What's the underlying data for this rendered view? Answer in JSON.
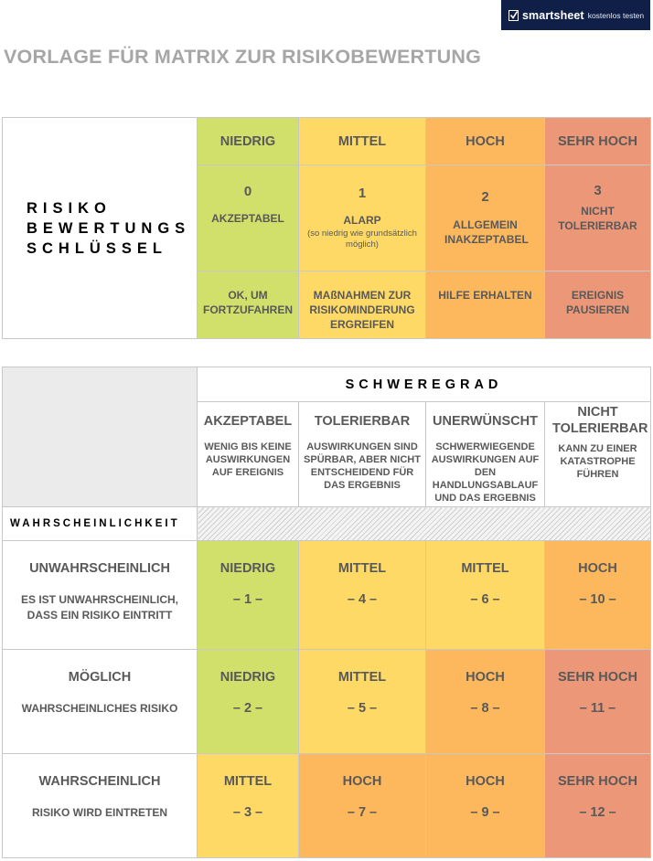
{
  "banner": {
    "brand": "smartsheet",
    "cta": "kostenlos testen",
    "background": "#0f1f48"
  },
  "title": "VORLAGE FÜR MATRIX ZUR RISIKOBEWERTUNG",
  "colors": {
    "green": "#d1df6b",
    "yellow": "#ffd966",
    "orange": "#fdb85d",
    "red": "#ec9878"
  },
  "key": {
    "label_lines": [
      "RISIKO",
      "BEWERTUNGS",
      "SCHLÜSSEL"
    ],
    "columns": [
      {
        "level": "NIEDRIG",
        "number": "0",
        "rating": "AKZEPTABEL",
        "note": "",
        "action": "OK, UM FORTZUFAHREN",
        "color": "green"
      },
      {
        "level": "MITTEL",
        "number": "1",
        "rating": "ALARP",
        "note": "(so niedrig wie grundsätzlich möglich)",
        "action": "MAßNAHMEN ZUR RISIKOMINDERUNG ERGREIFEN",
        "color": "yellow"
      },
      {
        "level": "HOCH",
        "number": "2",
        "rating": "ALLGEMEIN INAKZEPTABEL",
        "note": "",
        "action": "HILFE ERHALTEN",
        "color": "orange"
      },
      {
        "level": "SEHR HOCH",
        "number": "3",
        "rating": "NICHT TOLERIERBAR",
        "note": "",
        "action": "EREIGNIS PAUSIEREN",
        "color": "red"
      }
    ]
  },
  "matrix": {
    "severity_title": "SCHWEREGRAD",
    "likelihood_title": "WAHRSCHEINLICHKEIT",
    "severity": [
      {
        "title": "AKZEPTABEL",
        "desc": "WENIG BIS KEINE AUSWIRKUNGEN AUF EREIGNIS"
      },
      {
        "title": "TOLERIERBAR",
        "desc": "AUSWIRKUNGEN SIND SPÜRBAR, ABER NICHT ENTSCHEIDEND FÜR DAS ERGEBNIS"
      },
      {
        "title": "UNERWÜNSCHT",
        "desc": "SCHWERWIEGENDE AUSWIRKUNGEN AUF DEN HANDLUNGSABLAUF UND DAS ERGEBNIS"
      },
      {
        "title": "NICHT TOLERIERBAR",
        "desc": "KANN ZU EINER KATASTROPHE FÜHREN"
      }
    ],
    "rows": [
      {
        "title": "UNWAHRSCHEINLICH",
        "desc": "ES IST UNWAHRSCHEINLICH, DASS EIN RISIKO EINTRITT",
        "cells": [
          {
            "level": "NIEDRIG",
            "value": "– 1 –",
            "color": "green"
          },
          {
            "level": "MITTEL",
            "value": "– 4 –",
            "color": "yellow"
          },
          {
            "level": "MITTEL",
            "value": "– 6 –",
            "color": "yellow"
          },
          {
            "level": "HOCH",
            "value": "– 10 –",
            "color": "orange"
          }
        ]
      },
      {
        "title": "MÖGLICH",
        "desc": "WAHRSCHEINLICHES RISIKO",
        "cells": [
          {
            "level": "NIEDRIG",
            "value": "– 2 –",
            "color": "green"
          },
          {
            "level": "MITTEL",
            "value": "– 5 –",
            "color": "yellow"
          },
          {
            "level": "HOCH",
            "value": "– 8 –",
            "color": "orange"
          },
          {
            "level": "SEHR HOCH",
            "value": "– 11 –",
            "color": "red"
          }
        ]
      },
      {
        "title": "WAHRSCHEINLICH",
        "desc": "RISIKO WIRD EINTRETEN",
        "cells": [
          {
            "level": "MITTEL",
            "value": "– 3 –",
            "color": "yellow"
          },
          {
            "level": "HOCH",
            "value": "– 7 –",
            "color": "orange"
          },
          {
            "level": "HOCH",
            "value": "– 9 –",
            "color": "orange"
          },
          {
            "level": "SEHR HOCH",
            "value": "– 12 –",
            "color": "red"
          }
        ]
      }
    ]
  }
}
